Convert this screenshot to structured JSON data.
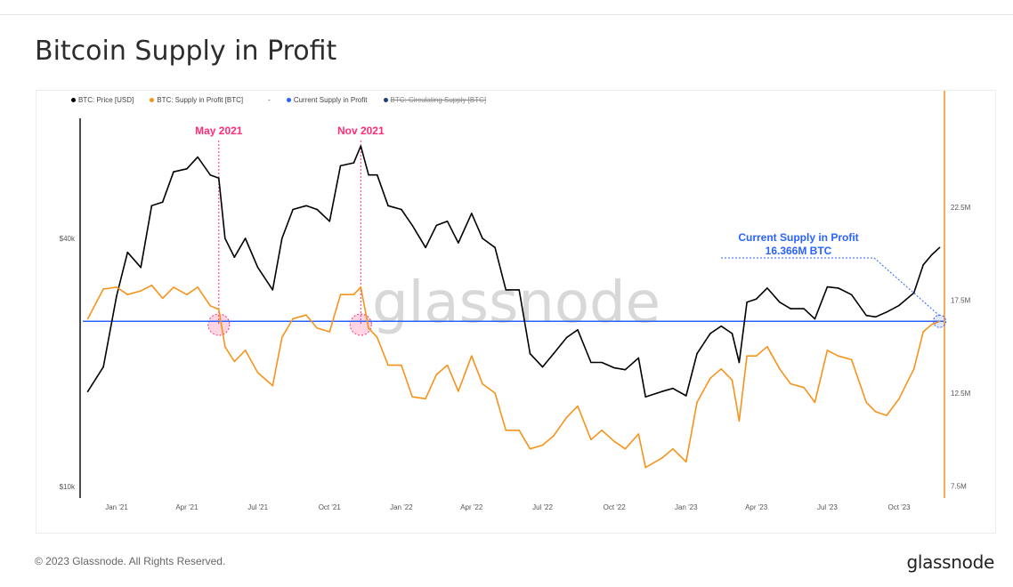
{
  "title": "Bitcoin Supply in Profit",
  "footer": {
    "copyright": "© 2023 Glassnode. All Rights Reserved.",
    "logo": "glassnode"
  },
  "watermark": "glassnode",
  "chart_data": {
    "type": "line",
    "legend": [
      {
        "name": "BTC: Price [USD]",
        "color": "#000000"
      },
      {
        "name": "BTC: Supply in Profit [BTC]",
        "color": "#f7931a"
      },
      {
        "name": "-",
        "color": ""
      },
      {
        "name": "Current Supply in Profit",
        "color": "#2962ff"
      },
      {
        "name": "BTC: Circulating Supply [BTC]",
        "color": "#1f3f7a",
        "hidden": true
      }
    ],
    "legend_position": "top-left",
    "x_ticks": [
      "Jan '21",
      "Apr '21",
      "Jul '21",
      "Oct '21",
      "Jan '22",
      "Apr '22",
      "Jul '22",
      "Oct '22",
      "Jan '23",
      "Apr '23",
      "Jul '23",
      "Oct '23"
    ],
    "y_left": {
      "scale": "log",
      "ticks": [
        "$10k",
        "$40k"
      ],
      "range": [
        10000,
        100000
      ]
    },
    "y_right": {
      "scale": "linear",
      "ticks": [
        "7.5M",
        "12.5M",
        "17.5M",
        "22.5M"
      ],
      "range": [
        7.5,
        27.5
      ],
      "unit": "M BTC"
    },
    "grid": false,
    "annotations": [
      {
        "label": "May 2021",
        "date": "2021-05-12",
        "color": "#ff2d78"
      },
      {
        "label": "Nov 2021",
        "date": "2021-11-10",
        "color": "#ff2d78"
      }
    ],
    "callout": {
      "line1": "Current Supply in Profit",
      "line2": "16.366M BTC",
      "color": "#2962ff"
    },
    "current_supply_in_profit": 16.366,
    "dates": [
      "2020-11-25",
      "2020-12-15",
      "2021-01-01",
      "2021-01-15",
      "2021-02-01",
      "2021-02-15",
      "2021-03-01",
      "2021-03-15",
      "2021-04-01",
      "2021-04-15",
      "2021-05-01",
      "2021-05-12",
      "2021-05-20",
      "2021-06-01",
      "2021-06-15",
      "2021-07-01",
      "2021-07-20",
      "2021-08-01",
      "2021-08-15",
      "2021-09-01",
      "2021-09-15",
      "2021-10-01",
      "2021-10-15",
      "2021-11-01",
      "2021-11-10",
      "2021-11-20",
      "2021-12-01",
      "2021-12-15",
      "2022-01-01",
      "2022-01-15",
      "2022-02-01",
      "2022-02-15",
      "2022-03-01",
      "2022-03-15",
      "2022-04-01",
      "2022-04-15",
      "2022-05-01",
      "2022-05-15",
      "2022-06-01",
      "2022-06-15",
      "2022-07-01",
      "2022-07-15",
      "2022-08-01",
      "2022-08-15",
      "2022-09-01",
      "2022-09-15",
      "2022-10-01",
      "2022-10-15",
      "2022-11-01",
      "2022-11-10",
      "2022-12-01",
      "2022-12-15",
      "2023-01-01",
      "2023-01-15",
      "2023-02-01",
      "2023-02-15",
      "2023-03-01",
      "2023-03-10",
      "2023-03-20",
      "2023-04-01",
      "2023-04-15",
      "2023-05-01",
      "2023-05-15",
      "2023-06-01",
      "2023-06-15",
      "2023-07-01",
      "2023-07-15",
      "2023-08-01",
      "2023-08-20",
      "2023-09-01",
      "2023-09-15",
      "2023-10-01",
      "2023-10-20",
      "2023-11-01",
      "2023-11-12",
      "2023-11-22"
    ],
    "series": [
      {
        "name": "BTC: Price [USD]",
        "values": [
          17000,
          19500,
          29000,
          37000,
          34000,
          48000,
          49000,
          58000,
          59000,
          63000,
          57000,
          56000,
          40000,
          36000,
          40000,
          34000,
          30000,
          40000,
          47000,
          48000,
          47000,
          44000,
          60000,
          61000,
          67000,
          57000,
          57000,
          48000,
          47000,
          43000,
          38000,
          43000,
          44000,
          39000,
          46000,
          40000,
          38000,
          30000,
          30000,
          21000,
          19500,
          21000,
          23000,
          24000,
          20000,
          20000,
          19400,
          19200,
          20500,
          16500,
          17000,
          17300,
          16600,
          21000,
          23500,
          24500,
          23500,
          20000,
          28000,
          28500,
          30300,
          28000,
          27000,
          27000,
          25500,
          30500,
          30300,
          29200,
          26000,
          25800,
          26500,
          27500,
          29500,
          34500,
          36500,
          38000
        ]
      },
      {
        "name": "BTC: Supply in Profit [BTC]",
        "values": [
          16.5,
          18.1,
          18.2,
          17.8,
          18.0,
          18.3,
          17.6,
          18.2,
          17.8,
          18.2,
          17.2,
          17.0,
          15.0,
          14.2,
          14.8,
          13.6,
          12.9,
          15.5,
          16.5,
          16.7,
          16.0,
          15.8,
          17.8,
          17.8,
          18.2,
          16.0,
          15.5,
          14.0,
          14.0,
          12.3,
          12.2,
          13.5,
          14.0,
          12.6,
          14.5,
          13.0,
          12.5,
          10.5,
          10.5,
          9.5,
          9.7,
          10.2,
          11.2,
          11.8,
          10.0,
          10.5,
          9.9,
          9.5,
          10.3,
          8.5,
          9.0,
          9.5,
          8.8,
          12.0,
          13.3,
          13.8,
          13.2,
          11.0,
          14.5,
          14.5,
          15.0,
          13.8,
          13.0,
          12.8,
          12.0,
          14.8,
          14.5,
          14.3,
          12.0,
          11.5,
          11.3,
          12.2,
          13.8,
          15.8,
          16.2,
          16.366
        ]
      }
    ]
  }
}
